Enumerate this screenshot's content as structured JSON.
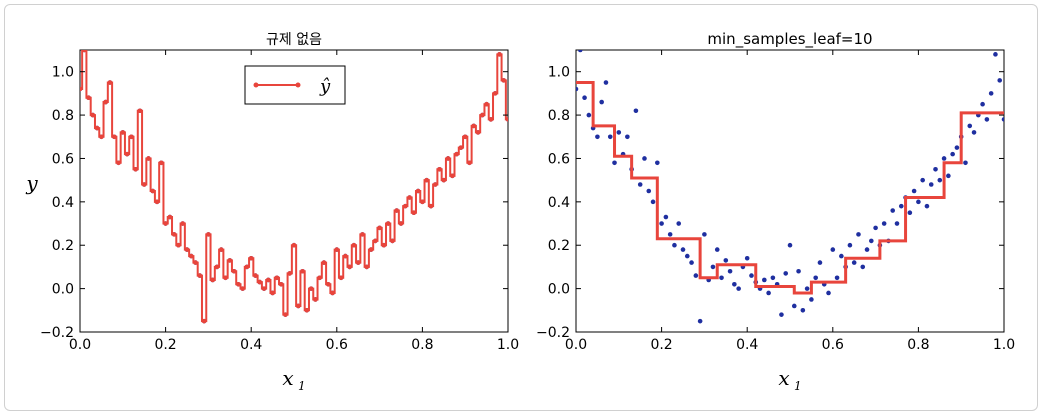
{
  "chart_data": [
    {
      "type": "line",
      "title": "규제 없음",
      "xlabel": "x",
      "xlabel_sub": "1",
      "ylabel": "y",
      "xlim": [
        0.0,
        1.0
      ],
      "ylim": [
        -0.2,
        1.1
      ],
      "xticks": [
        "0.0",
        "0.2",
        "0.4",
        "0.6",
        "0.8",
        "1.0"
      ],
      "yticks": [
        "−0.2",
        "0.0",
        "0.2",
        "0.4",
        "0.6",
        "0.8",
        "1.0"
      ],
      "legend": {
        "label": "ŷ",
        "placement": "top-center"
      },
      "line_color": "#e8453c",
      "point_color": "#1f2fa0",
      "points": {
        "x": [
          0.0,
          0.01,
          0.02,
          0.03,
          0.04,
          0.05,
          0.06,
          0.07,
          0.08,
          0.09,
          0.1,
          0.11,
          0.12,
          0.13,
          0.14,
          0.15,
          0.16,
          0.17,
          0.18,
          0.19,
          0.2,
          0.21,
          0.22,
          0.23,
          0.24,
          0.25,
          0.26,
          0.27,
          0.28,
          0.29,
          0.3,
          0.31,
          0.32,
          0.33,
          0.34,
          0.35,
          0.36,
          0.37,
          0.38,
          0.39,
          0.4,
          0.41,
          0.42,
          0.43,
          0.44,
          0.45,
          0.46,
          0.47,
          0.48,
          0.49,
          0.5,
          0.51,
          0.52,
          0.53,
          0.54,
          0.55,
          0.56,
          0.57,
          0.58,
          0.59,
          0.6,
          0.61,
          0.62,
          0.63,
          0.64,
          0.65,
          0.66,
          0.67,
          0.68,
          0.69,
          0.7,
          0.71,
          0.72,
          0.73,
          0.74,
          0.75,
          0.76,
          0.77,
          0.78,
          0.79,
          0.8,
          0.81,
          0.82,
          0.83,
          0.84,
          0.85,
          0.86,
          0.87,
          0.88,
          0.89,
          0.9,
          0.91,
          0.92,
          0.93,
          0.94,
          0.95,
          0.96,
          0.97,
          0.98,
          0.99,
          1.0
        ],
        "y": [
          0.92,
          1.1,
          0.88,
          0.8,
          0.74,
          0.7,
          0.86,
          0.95,
          0.7,
          0.58,
          0.72,
          0.62,
          0.7,
          0.55,
          0.82,
          0.48,
          0.6,
          0.45,
          0.4,
          0.58,
          0.3,
          0.33,
          0.25,
          0.2,
          0.3,
          0.18,
          0.15,
          0.12,
          0.06,
          -0.15,
          0.25,
          0.04,
          0.1,
          0.18,
          0.05,
          0.13,
          0.08,
          0.02,
          0.0,
          0.1,
          0.14,
          0.06,
          0.03,
          0.0,
          0.04,
          -0.02,
          0.05,
          0.02,
          -0.12,
          0.07,
          0.2,
          -0.08,
          0.08,
          -0.1,
          0.0,
          -0.05,
          0.05,
          0.12,
          0.02,
          -0.02,
          0.18,
          0.05,
          0.15,
          0.1,
          0.2,
          0.12,
          0.25,
          0.1,
          0.18,
          0.22,
          0.28,
          0.2,
          0.3,
          0.22,
          0.36,
          0.3,
          0.38,
          0.42,
          0.35,
          0.45,
          0.4,
          0.5,
          0.38,
          0.48,
          0.55,
          0.5,
          0.6,
          0.52,
          0.62,
          0.65,
          0.7,
          0.58,
          0.75,
          0.72,
          0.8,
          0.85,
          0.78,
          0.9,
          1.08,
          0.96,
          0.78
        ]
      },
      "step": "through-points"
    },
    {
      "type": "line",
      "title": "min_samples_leaf=10",
      "xlabel": "x",
      "xlabel_sub": "1",
      "ylabel": "",
      "xlim": [
        0.0,
        1.0
      ],
      "ylim": [
        -0.2,
        1.1
      ],
      "xticks": [
        "0.0",
        "0.2",
        "0.4",
        "0.6",
        "0.8",
        "1.0"
      ],
      "yticks": [
        "−0.2",
        "0.0",
        "0.2",
        "0.4",
        "0.6",
        "0.8",
        "1.0"
      ],
      "line_color": "#e8453c",
      "point_color": "#1f2fa0",
      "points": {
        "x": [
          0.0,
          0.01,
          0.02,
          0.03,
          0.04,
          0.05,
          0.06,
          0.07,
          0.08,
          0.09,
          0.1,
          0.11,
          0.12,
          0.13,
          0.14,
          0.15,
          0.16,
          0.17,
          0.18,
          0.19,
          0.2,
          0.21,
          0.22,
          0.23,
          0.24,
          0.25,
          0.26,
          0.27,
          0.28,
          0.29,
          0.3,
          0.31,
          0.32,
          0.33,
          0.34,
          0.35,
          0.36,
          0.37,
          0.38,
          0.39,
          0.4,
          0.41,
          0.42,
          0.43,
          0.44,
          0.45,
          0.46,
          0.47,
          0.48,
          0.49,
          0.5,
          0.51,
          0.52,
          0.53,
          0.54,
          0.55,
          0.56,
          0.57,
          0.58,
          0.59,
          0.6,
          0.61,
          0.62,
          0.63,
          0.64,
          0.65,
          0.66,
          0.67,
          0.68,
          0.69,
          0.7,
          0.71,
          0.72,
          0.73,
          0.74,
          0.75,
          0.76,
          0.77,
          0.78,
          0.79,
          0.8,
          0.81,
          0.82,
          0.83,
          0.84,
          0.85,
          0.86,
          0.87,
          0.88,
          0.89,
          0.9,
          0.91,
          0.92,
          0.93,
          0.94,
          0.95,
          0.96,
          0.97,
          0.98,
          0.99,
          1.0
        ],
        "y": [
          0.92,
          1.1,
          0.88,
          0.8,
          0.74,
          0.7,
          0.86,
          0.95,
          0.7,
          0.58,
          0.72,
          0.62,
          0.7,
          0.55,
          0.82,
          0.48,
          0.6,
          0.45,
          0.4,
          0.58,
          0.3,
          0.33,
          0.25,
          0.2,
          0.3,
          0.18,
          0.15,
          0.12,
          0.06,
          -0.15,
          0.25,
          0.04,
          0.1,
          0.18,
          0.05,
          0.13,
          0.08,
          0.02,
          0.0,
          0.1,
          0.14,
          0.06,
          0.03,
          0.0,
          0.04,
          -0.02,
          0.05,
          0.02,
          -0.12,
          0.07,
          0.2,
          -0.08,
          0.08,
          -0.1,
          0.0,
          -0.05,
          0.05,
          0.12,
          0.02,
          -0.02,
          0.18,
          0.05,
          0.15,
          0.1,
          0.2,
          0.12,
          0.25,
          0.1,
          0.18,
          0.22,
          0.28,
          0.2,
          0.3,
          0.22,
          0.36,
          0.3,
          0.38,
          0.42,
          0.35,
          0.45,
          0.4,
          0.5,
          0.38,
          0.48,
          0.55,
          0.5,
          0.6,
          0.52,
          0.62,
          0.65,
          0.7,
          0.58,
          0.75,
          0.72,
          0.8,
          0.85,
          0.78,
          0.9,
          1.08,
          0.96,
          0.78
        ]
      },
      "step": {
        "breaks": [
          0.0,
          0.04,
          0.09,
          0.13,
          0.19,
          0.29,
          0.33,
          0.42,
          0.51,
          0.55,
          0.63,
          0.71,
          0.77,
          0.86,
          0.9,
          1.0
        ],
        "levels": [
          0.95,
          0.75,
          0.61,
          0.51,
          0.23,
          0.05,
          0.11,
          0.01,
          -0.02,
          0.03,
          0.14,
          0.22,
          0.42,
          0.58,
          0.81
        ]
      }
    }
  ]
}
